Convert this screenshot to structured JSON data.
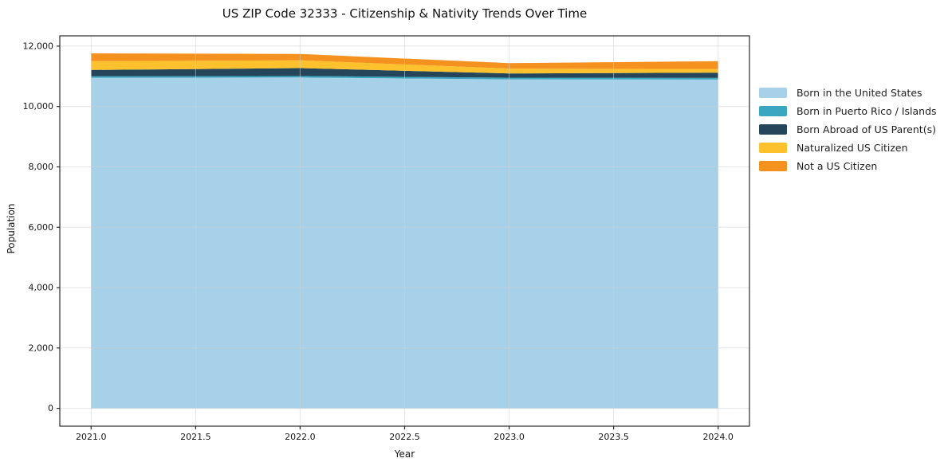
{
  "figure": {
    "background": "#ffffff"
  },
  "chart_data": {
    "type": "area",
    "stacked": true,
    "title": "US ZIP Code 32333 - Citizenship & Nativity Trends Over Time",
    "xlabel": "Year",
    "ylabel": "Population",
    "x": [
      2021,
      2022,
      2023,
      2024
    ],
    "series": [
      {
        "name": "Born in the United States",
        "color": "#a6d1e8",
        "values": [
          10950,
          10960,
          10900,
          10890
        ]
      },
      {
        "name": "Born in Puerto Rico / Islands",
        "color": "#3aa6c0",
        "values": [
          50,
          50,
          55,
          60
        ]
      },
      {
        "name": "Born Abroad of US Parent(s)",
        "color": "#25465a",
        "values": [
          210,
          260,
          140,
          170
        ]
      },
      {
        "name": "Naturalized US Citizen",
        "color": "#fcc12c",
        "values": [
          290,
          260,
          160,
          120
        ]
      },
      {
        "name": "Not a US Citizen",
        "color": "#f5921f",
        "values": [
          260,
          210,
          180,
          260
        ]
      }
    ],
    "totals": [
      11760,
      11740,
      11435,
      11500
    ],
    "xlim": [
      2020.85,
      2024.15
    ],
    "ylim": [
      -590,
      12340
    ],
    "xticks": [
      2021,
      2021.5,
      2022,
      2022.5,
      2023,
      2023.5,
      2024
    ],
    "xtick_labels": [
      "2021.0",
      "2021.5",
      "2022.0",
      "2022.5",
      "2023.0",
      "2023.5",
      "2024.0"
    ],
    "yticks": [
      0,
      2000,
      4000,
      6000,
      8000,
      10000,
      12000
    ],
    "ytick_labels": [
      "0",
      "2,000",
      "4,000",
      "6,000",
      "8,000",
      "10,000",
      "12,000"
    ],
    "grid": true,
    "legend_position": "right-outside",
    "legend_entries": [
      "Born in the United States",
      "Born in Puerto Rico / Islands",
      "Born Abroad of US Parent(s)",
      "Naturalized US Citizen",
      "Not a US Citizen"
    ]
  },
  "style": {
    "grid_color": "#cfcfcf",
    "grid_opacity": 0.55,
    "spine_color": "#2a2a2a",
    "tick_color": "#2a2a2a",
    "text_color": "#151515"
  }
}
